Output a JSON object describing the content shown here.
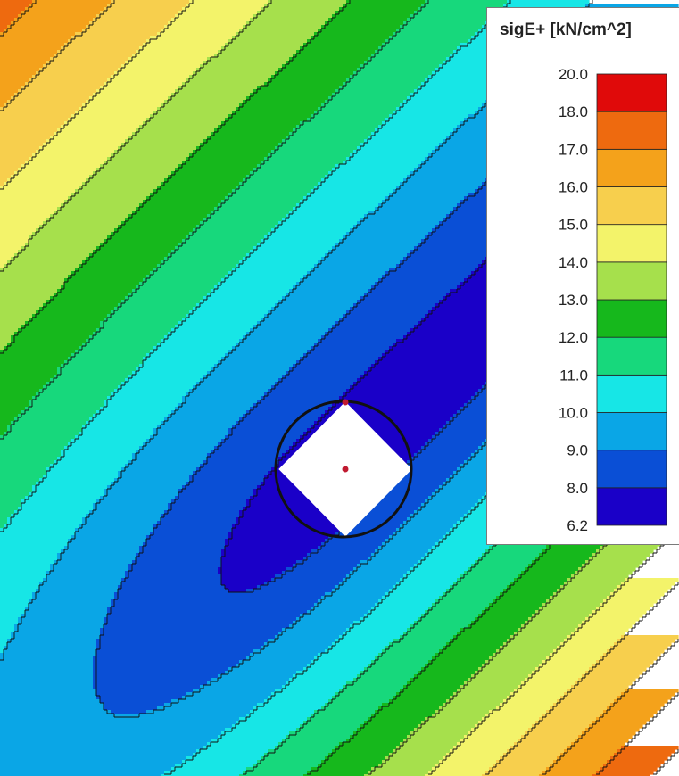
{
  "chart_data": {
    "type": "heatmap",
    "title": "",
    "quantity": "sigE+",
    "unit": "[kN/cm^2]",
    "legend_title": "sigE+ [kN/cm^2]",
    "legend_placement": "top-right",
    "range": [
      6.2,
      20.0
    ],
    "levels": [
      6.2,
      8.0,
      9.0,
      10.0,
      11.0,
      12.0,
      13.0,
      14.0,
      15.0,
      16.0,
      17.0,
      18.0,
      20.0
    ],
    "level_labels": [
      "6.2",
      "8.0",
      "9.0",
      "10.0",
      "11.0",
      "12.0",
      "13.0",
      "14.0",
      "15.0",
      "16.0",
      "17.0",
      "18.0",
      "20.0"
    ],
    "band_colors": [
      "#1a00c8",
      "#0a4fd6",
      "#0aa6e6",
      "#17e6e6",
      "#17d87c",
      "#16b81c",
      "#a6e04c",
      "#f3f36a",
      "#f7cf4d",
      "#f4a21b",
      "#ee6a0f",
      "#e00a0a"
    ],
    "contour_lines": true,
    "minimum_region": "around the central opening (dark blue, below 8.0)",
    "maximum_region": "bottom-right corner (red, above 18.0)",
    "opening_shape": "diamond",
    "marker_color": "#c01a30",
    "outline_color": "#111111"
  }
}
